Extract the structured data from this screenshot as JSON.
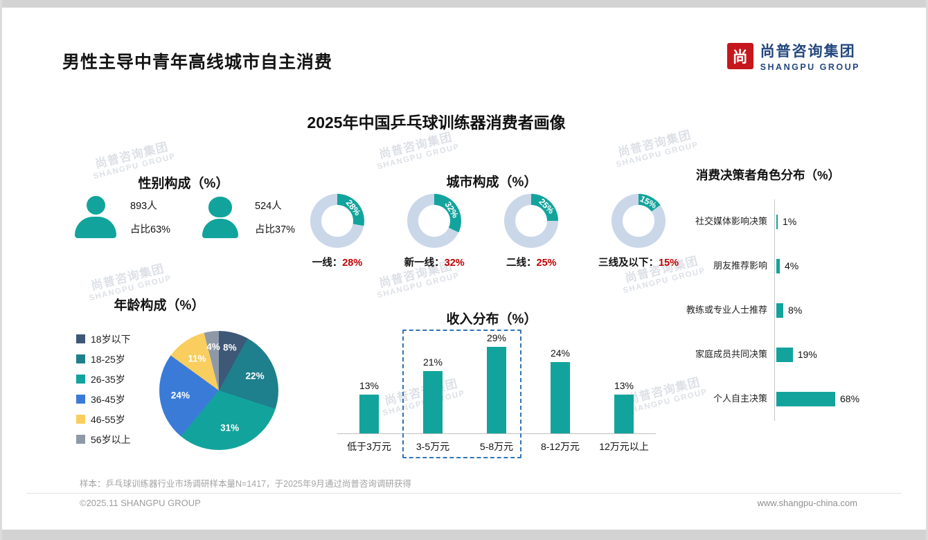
{
  "header": {
    "title": "男性主导中青年高线城市自主消费",
    "logo": {
      "cn": "尚普咨询集团",
      "en": "SHANGPU GROUP",
      "mark": "尚"
    }
  },
  "main_title": "2025年中国乒乓球训练器消费者画像",
  "watermark": {
    "line1": "尚普咨询集团",
    "line2": "SHANGPU GROUP"
  },
  "footer": {
    "note": "样本：乒乓球训练器行业市场调研样本量N=1417，于2025年9月通过尚普咨询调研获得",
    "left": "©2025.11 SHANGPU GROUP",
    "right": "www.shangpu-china.com"
  },
  "colors": {
    "teal": "#12A49C",
    "donut_rest": "#C9D7E9",
    "red": "#C00000",
    "logo_blue": "#24477E",
    "logo_red": "#C5171C",
    "highlight_box": "#2F74B5"
  },
  "chart_data": [
    {
      "id": "gender",
      "type": "icon-stat",
      "title": "性别构成（%）",
      "items": [
        {
          "gender": "male",
          "count": "893人",
          "share": "占比63%"
        },
        {
          "gender": "female",
          "count": "524人",
          "share": "占比37%"
        }
      ]
    },
    {
      "id": "city",
      "type": "donut",
      "title": "城市构成（%）",
      "items": [
        {
          "label": "一线：",
          "value": 28
        },
        {
          "label": "新一线：",
          "value": 32
        },
        {
          "label": "二线：",
          "value": 25
        },
        {
          "label": "三线及以下：",
          "value": 15
        }
      ]
    },
    {
      "id": "age",
      "type": "pie",
      "title": "年龄构成（%）",
      "segments": [
        {
          "label": "18岁以下",
          "value": 8,
          "color": "#3E5878"
        },
        {
          "label": "18-25岁",
          "value": 22,
          "color": "#1E7F8D"
        },
        {
          "label": "26-35岁",
          "value": 31,
          "color": "#12A49C"
        },
        {
          "label": "36-45岁",
          "value": 24,
          "color": "#3B7BD8"
        },
        {
          "label": "46-55岁",
          "value": 11,
          "color": "#F9CE5E"
        },
        {
          "label": "56岁以上",
          "value": 4,
          "color": "#8E99A8"
        }
      ]
    },
    {
      "id": "income",
      "type": "bar",
      "title": "收入分布（%）",
      "categories": [
        "低于3万元",
        "3-5万元",
        "5-8万元",
        "8-12万元",
        "12万元以上"
      ],
      "values": [
        13,
        21,
        29,
        24,
        13
      ],
      "highlight_categories": [
        "3-5万元",
        "5-8万元"
      ],
      "ylim": [
        0,
        32
      ]
    },
    {
      "id": "decision",
      "type": "hbar",
      "title": "消费决策者角色分布（%）",
      "categories": [
        "社交媒体影响决策",
        "朋友推荐影响",
        "教练或专业人士推荐",
        "家庭成员共同决策",
        "个人自主决策"
      ],
      "values": [
        1,
        4,
        8,
        19,
        68
      ],
      "xlim": [
        0,
        75
      ]
    }
  ]
}
